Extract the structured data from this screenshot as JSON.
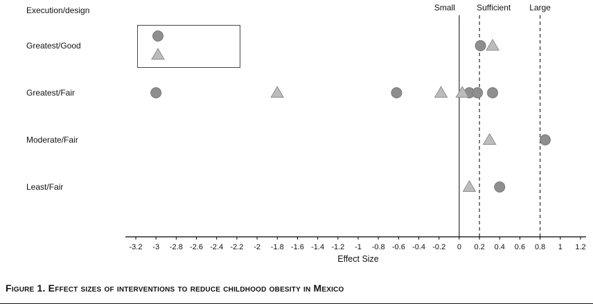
{
  "figure": {
    "caption": "Figure 1. Effect sizes of interventions to reduce childhood obesity in Mexico"
  },
  "chart_data": {
    "type": "scatter",
    "title": "",
    "xlabel": "Effect Size",
    "y_axis_header": "Execution/design",
    "categories": [
      "Greatest/Good",
      "Greatest/Fair",
      "Moderate/Fair",
      "Least/Fair"
    ],
    "xlim": [
      -3.2,
      1.2
    ],
    "x_tick_values": [
      -3.2,
      -3,
      -2.8,
      -2.6,
      -2.4,
      -2.2,
      -2,
      -1.8,
      -1.6,
      -1.4,
      -1.2,
      -1,
      -0.8,
      -0.6,
      -0.4,
      -0.2,
      0,
      0.2,
      0.4,
      0.6,
      0.8,
      1,
      1.2
    ],
    "x_tick_labels": [
      "-3.2",
      "-3",
      "-2.8",
      "-2.6",
      "-2.4",
      "-2.2",
      "-2",
      "-1.8",
      "-1.6",
      "-1.4",
      "-1.2",
      "-1",
      "-0.8",
      "-0.6",
      "-0.4",
      "-0.2",
      "0",
      "0.2",
      "0.4",
      "0.6",
      "0.8",
      "1",
      "1.2"
    ],
    "grid": false,
    "reference_lines": [
      {
        "label": "Small",
        "x": 0,
        "style": "solid"
      },
      {
        "label": "Sufficient",
        "x": 0.2,
        "style": "dashed"
      },
      {
        "label": "Large",
        "x": 0.8,
        "style": "dashed"
      }
    ],
    "legend": {
      "position": "top-left",
      "items": [
        {
          "marker": "circle",
          "label": ""
        },
        {
          "marker": "triangle",
          "label": ""
        }
      ]
    },
    "series": [
      {
        "name": "circle-interventions",
        "marker": "circle",
        "points": [
          {
            "category": "Greatest/Good",
            "x": 0.21
          },
          {
            "category": "Greatest/Fair",
            "x": -3.0
          },
          {
            "category": "Greatest/Fair",
            "x": -0.62
          },
          {
            "category": "Greatest/Fair",
            "x": 0.1
          },
          {
            "category": "Greatest/Fair",
            "x": 0.18
          },
          {
            "category": "Greatest/Fair",
            "x": 0.33
          },
          {
            "category": "Moderate/Fair",
            "x": 0.85
          },
          {
            "category": "Least/Fair",
            "x": 0.4
          }
        ]
      },
      {
        "name": "triangle-interventions",
        "marker": "triangle",
        "points": [
          {
            "category": "Greatest/Good",
            "x": 0.33
          },
          {
            "category": "Greatest/Fair",
            "x": -1.8
          },
          {
            "category": "Greatest/Fair",
            "x": -0.18
          },
          {
            "category": "Greatest/Fair",
            "x": 0.03
          },
          {
            "category": "Moderate/Fair",
            "x": 0.3
          },
          {
            "category": "Least/Fair",
            "x": 0.1
          }
        ]
      }
    ]
  },
  "colors": {
    "circle_fill": "#8e8e8e",
    "circle_stroke": "#7a7a7a",
    "triangle_fill": "#bcbcbc",
    "triangle_stroke": "#8e8e8e",
    "axis": "#000000",
    "text": "#111111"
  }
}
